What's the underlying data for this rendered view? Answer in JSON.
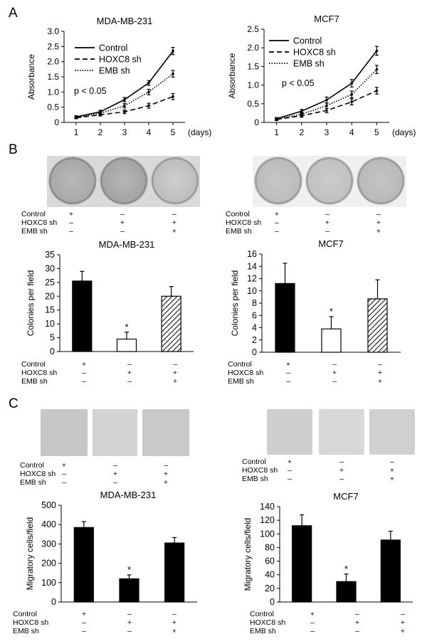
{
  "panels": {
    "a": "A",
    "b": "B",
    "c": "C"
  },
  "condition_labels": [
    "Control",
    "HOXC8 sh",
    "EMB sh"
  ],
  "condition_signs": [
    [
      "+",
      "–",
      "–"
    ],
    [
      "–",
      "+",
      "+"
    ],
    [
      "–",
      "–",
      "+"
    ]
  ],
  "chart_data": [
    {
      "type": "line",
      "title": "MDA-MB-231",
      "ylabel": "Absorbance",
      "xlabel": "(days)",
      "x": [
        1,
        2,
        3,
        4,
        5
      ],
      "xlim": [
        0.5,
        5.5
      ],
      "ylim": [
        0,
        3.0
      ],
      "yticks": [
        0,
        0.5,
        1.0,
        1.5,
        2.0,
        2.5,
        3.0
      ],
      "ytick_labels": [
        "0",
        "0.5",
        "1.0",
        "1.5",
        "2.0",
        "2.5",
        "3.0"
      ],
      "annotation": "p < 0.05",
      "legend": "top-left",
      "series": [
        {
          "name": "Control",
          "style": "solid",
          "values": [
            0.18,
            0.35,
            0.75,
            1.3,
            2.35
          ],
          "err": [
            0.04,
            0.05,
            0.07,
            0.08,
            0.12
          ]
        },
        {
          "name": "HOXC8 sh",
          "style": "dashed",
          "values": [
            0.15,
            0.25,
            0.35,
            0.55,
            0.85
          ],
          "err": [
            0.03,
            0.04,
            0.06,
            0.08,
            0.1
          ]
        },
        {
          "name": "EMB sh",
          "style": "dotted",
          "values": [
            0.17,
            0.3,
            0.55,
            1.0,
            1.6
          ],
          "err": [
            0.03,
            0.05,
            0.07,
            0.09,
            0.11
          ]
        }
      ]
    },
    {
      "type": "line",
      "title": "MCF7",
      "ylabel": "Absorbance",
      "xlabel": "(days)",
      "x": [
        1,
        2,
        3,
        4,
        5
      ],
      "xlim": [
        0.5,
        5.5
      ],
      "ylim": [
        0,
        2.5
      ],
      "yticks": [
        0,
        0.5,
        1.0,
        1.5,
        2.0,
        2.5
      ],
      "ytick_labels": [
        "0",
        "0.5",
        "1.0",
        "1.5",
        "2.0",
        "2.5"
      ],
      "annotation": "p < 0.05",
      "legend": "top-left",
      "series": [
        {
          "name": "Control",
          "style": "solid",
          "values": [
            0.1,
            0.3,
            0.6,
            1.05,
            1.92
          ],
          "err": [
            0.03,
            0.05,
            0.08,
            0.1,
            0.12
          ]
        },
        {
          "name": "HOXC8 sh",
          "style": "dashed",
          "values": [
            0.08,
            0.18,
            0.32,
            0.55,
            0.85
          ],
          "err": [
            0.03,
            0.04,
            0.06,
            0.08,
            0.09
          ]
        },
        {
          "name": "EMB sh",
          "style": "dotted",
          "values": [
            0.09,
            0.22,
            0.45,
            0.75,
            1.42
          ],
          "err": [
            0.03,
            0.05,
            0.07,
            0.09,
            0.11
          ]
        }
      ]
    },
    {
      "type": "bar",
      "title": "MDA-MB-231",
      "ylabel": "Colonies per field",
      "ylim": [
        0,
        35
      ],
      "yticks": [
        0,
        5,
        10,
        15,
        20,
        25,
        30,
        35
      ],
      "ytick_labels": [
        "0",
        "5",
        "10",
        "15",
        "20",
        "25",
        "30",
        "35"
      ],
      "values": [
        25.5,
        4.5,
        20
      ],
      "err": [
        3.5,
        2.5,
        3.5
      ],
      "fills": [
        "solid",
        "white",
        "hatched"
      ],
      "significance": [
        null,
        "*",
        null
      ]
    },
    {
      "type": "bar",
      "title": "MCF7",
      "ylabel": "Colonies per field",
      "ylim": [
        0,
        16
      ],
      "yticks": [
        0,
        2,
        4,
        6,
        8,
        10,
        12,
        14,
        16
      ],
      "ytick_labels": [
        "0",
        "2",
        "4",
        "6",
        "8",
        "10",
        "12",
        "14",
        "16"
      ],
      "values": [
        11.2,
        3.8,
        8.7
      ],
      "err": [
        3.3,
        2.0,
        3.1
      ],
      "fills": [
        "solid",
        "white",
        "hatched"
      ],
      "significance": [
        null,
        "*",
        null
      ]
    },
    {
      "type": "bar",
      "title": "MDA-MB-231",
      "ylabel": "Migratory cells/field",
      "ylim": [
        0,
        500
      ],
      "yticks": [
        0,
        100,
        200,
        300,
        400,
        500
      ],
      "ytick_labels": [
        "0",
        "100",
        "200",
        "300",
        "400",
        "500"
      ],
      "values": [
        385,
        120,
        305
      ],
      "err": [
        30,
        20,
        28
      ],
      "fills": [
        "solid",
        "solid",
        "solid"
      ],
      "significance": [
        null,
        "*",
        null
      ]
    },
    {
      "type": "bar",
      "title": "MCF7",
      "ylabel": "Migratory cells/field",
      "ylim": [
        0,
        140
      ],
      "yticks": [
        0,
        20,
        40,
        60,
        80,
        100,
        120,
        140
      ],
      "ytick_labels": [
        "0",
        "20",
        "40",
        "60",
        "80",
        "100",
        "120",
        "140"
      ],
      "values": [
        112,
        30,
        91
      ],
      "err": [
        16,
        11,
        13
      ],
      "fills": [
        "solid",
        "solid",
        "solid"
      ],
      "significance": [
        null,
        "*",
        null
      ]
    }
  ]
}
